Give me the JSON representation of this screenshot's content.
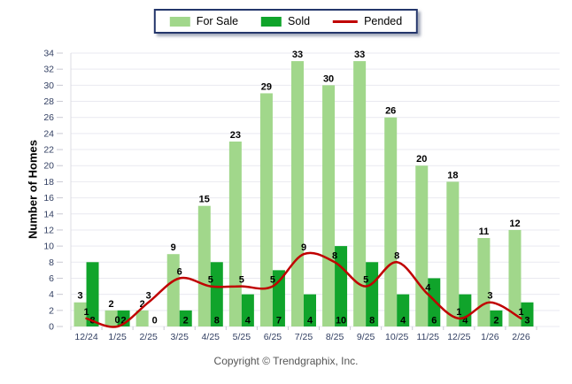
{
  "chart_data": {
    "type": "bar",
    "categories": [
      "12/24",
      "1/25",
      "2/25",
      "3/25",
      "4/25",
      "5/25",
      "6/25",
      "7/25",
      "8/25",
      "9/25",
      "10/25",
      "11/25",
      "12/25",
      "1/26",
      "2/26"
    ],
    "series": [
      {
        "name": "For Sale",
        "type": "bar",
        "color": "#a1d78b",
        "values": [
          3,
          2,
          2,
          9,
          15,
          23,
          29,
          33,
          30,
          33,
          26,
          20,
          18,
          11,
          12
        ]
      },
      {
        "name": "Sold",
        "type": "bar",
        "color": "#10a42b",
        "values": [
          8,
          2,
          0,
          2,
          8,
          4,
          7,
          4,
          10,
          8,
          4,
          6,
          4,
          2,
          3
        ]
      },
      {
        "name": "Pended",
        "type": "line",
        "color": "#c00000",
        "values": [
          1,
          0,
          3,
          6,
          5,
          5,
          5,
          9,
          8,
          5,
          8,
          4,
          1,
          3,
          1
        ]
      }
    ],
    "title": "",
    "xlabel": "",
    "ylabel": "Number of Homes",
    "ylim": [
      0,
      34
    ],
    "ytick_step": 2,
    "grid": true,
    "legend_position": "top-center",
    "value_labels": {
      "for_sale": "above bar",
      "sold": "at bar base",
      "pended": "above line point"
    }
  },
  "colors": {
    "axis_text": "#334063",
    "gridline": "#e9e9f0",
    "tick": "#c8c8d2",
    "legend_border": "#24366b",
    "label_text": "#000000",
    "copyright_text": "#555555"
  },
  "footer": {
    "copyright": "Copyright © Trendgraphix, Inc."
  }
}
